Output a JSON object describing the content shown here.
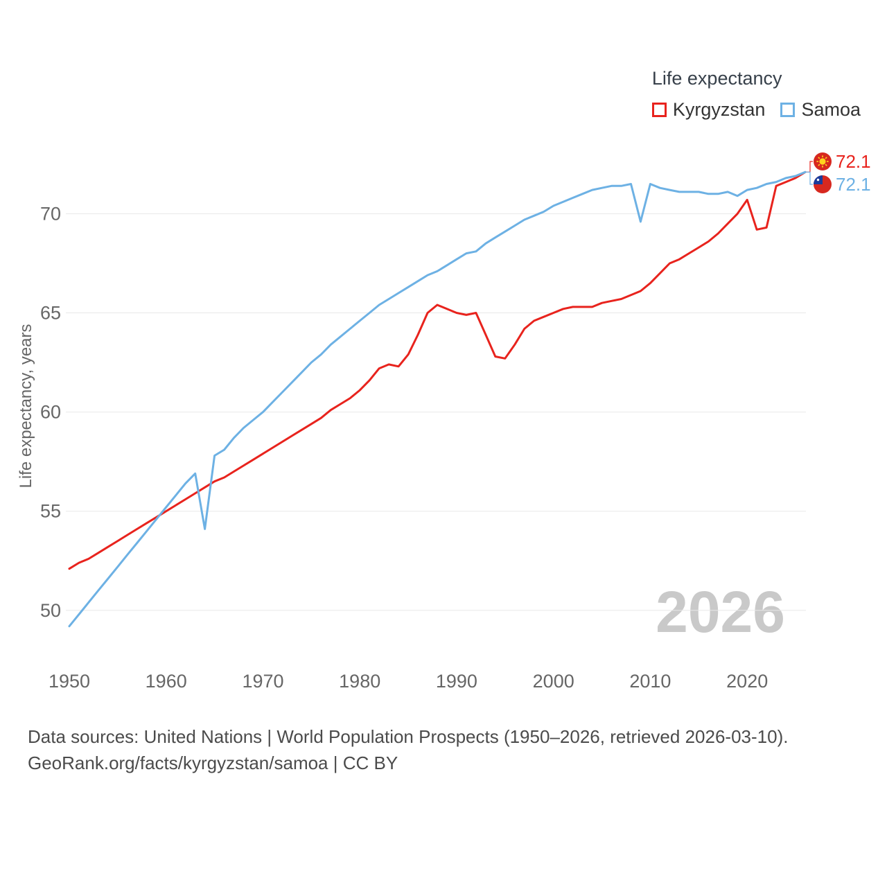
{
  "legend": {
    "title": "Life expectancy",
    "series": [
      {
        "label": "Kyrgyzstan",
        "color": "#e8231d"
      },
      {
        "label": "Samoa",
        "color": "#6db1e4"
      }
    ]
  },
  "watermark": "2026",
  "footer": {
    "line1": "Data sources: United Nations | World Population Prospects (1950–2026, retrieved 2026-03-10).",
    "line2": "GeoRank.org/facts/kyrgyzstan/samoa | CC BY"
  },
  "chart_data": {
    "type": "line",
    "title": "Life expectancy",
    "ylabel": "Life expectancy, years",
    "x_start": 1950,
    "x_end": 2026,
    "xlim": [
      1950,
      2026
    ],
    "ylim": [
      48,
      72.6
    ],
    "x_ticks": [
      1950,
      1960,
      1970,
      1980,
      1990,
      2000,
      2010,
      2020
    ],
    "y_ticks": [
      50,
      55,
      60,
      65,
      70
    ],
    "grid": "horizontal",
    "legend_position": "top-right",
    "series": [
      {
        "name": "Kyrgyzstan",
        "color": "#e8231d",
        "flag": "kyrgyzstan-flag",
        "end_label": "72.1",
        "values": [
          52.1,
          52.4,
          52.6,
          52.9,
          53.2,
          53.5,
          53.8,
          54.1,
          54.4,
          54.7,
          55.0,
          55.3,
          55.6,
          55.9,
          56.2,
          56.5,
          56.7,
          57.0,
          57.3,
          57.6,
          57.9,
          58.2,
          58.5,
          58.8,
          59.1,
          59.4,
          59.7,
          60.1,
          60.4,
          60.7,
          61.1,
          61.6,
          62.2,
          62.4,
          62.3,
          62.9,
          63.9,
          65.0,
          65.4,
          65.2,
          65.0,
          64.9,
          65.0,
          63.9,
          62.8,
          62.7,
          63.4,
          64.2,
          64.6,
          64.8,
          65.0,
          65.2,
          65.3,
          65.3,
          65.3,
          65.5,
          65.6,
          65.7,
          65.9,
          66.1,
          66.5,
          67.0,
          67.5,
          67.7,
          68.0,
          68.3,
          68.6,
          69.0,
          69.5,
          70.0,
          70.7,
          69.2,
          69.3,
          71.4,
          71.6,
          71.8,
          72.1
        ]
      },
      {
        "name": "Samoa",
        "color": "#6db1e4",
        "flag": "samoa-flag",
        "end_label": "72.1",
        "values": [
          49.2,
          49.8,
          50.4,
          51.0,
          51.6,
          52.2,
          52.8,
          53.4,
          54.0,
          54.6,
          55.2,
          55.8,
          56.4,
          56.9,
          54.1,
          57.8,
          58.1,
          58.7,
          59.2,
          59.6,
          60.0,
          60.5,
          61.0,
          61.5,
          62.0,
          62.5,
          62.9,
          63.4,
          63.8,
          64.2,
          64.6,
          65.0,
          65.4,
          65.7,
          66.0,
          66.3,
          66.6,
          66.9,
          67.1,
          67.4,
          67.7,
          68.0,
          68.1,
          68.5,
          68.8,
          69.1,
          69.4,
          69.7,
          69.9,
          70.1,
          70.4,
          70.6,
          70.8,
          71.0,
          71.2,
          71.3,
          71.4,
          71.4,
          71.5,
          69.6,
          71.5,
          71.3,
          71.2,
          71.1,
          71.1,
          71.1,
          71.0,
          71.0,
          71.1,
          70.9,
          71.2,
          71.3,
          71.5,
          71.6,
          71.8,
          71.9,
          72.1
        ]
      }
    ]
  }
}
